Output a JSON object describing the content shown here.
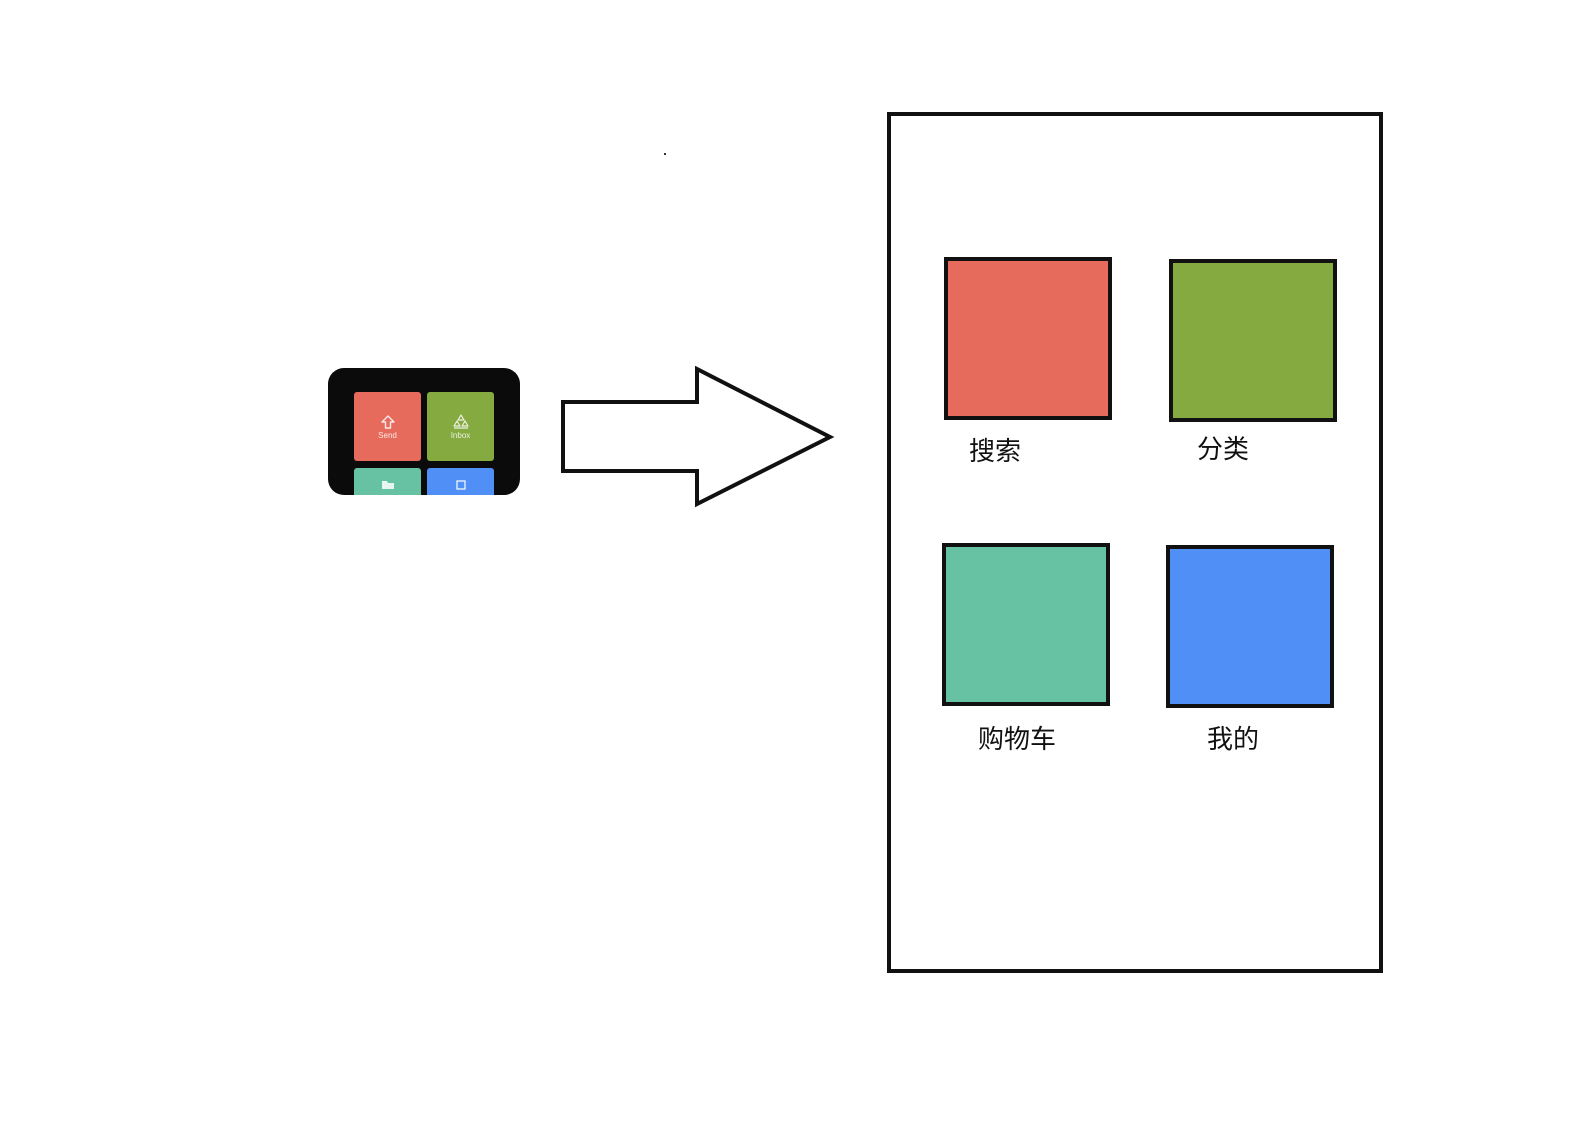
{
  "colors": {
    "red": "#e76b5d",
    "green": "#84aa40",
    "teal": "#67c2a4",
    "blue": "#508ff5",
    "outline": "#111111"
  },
  "thumbnail": {
    "tiles": [
      {
        "label": "Send",
        "icon": "upload-arrow-icon",
        "color": "#e76b5d"
      },
      {
        "label": "Inbox",
        "icon": "inbox-icon",
        "color": "#84aa40"
      },
      {
        "label": "",
        "icon": "folder-icon",
        "color": "#67c2a4"
      },
      {
        "label": "",
        "icon": "box-icon",
        "color": "#508ff5"
      }
    ]
  },
  "arrow": {
    "icon": "right-arrow-icon"
  },
  "phone": {
    "tiles": [
      {
        "label": "搜索",
        "color": "#e76b5d"
      },
      {
        "label": "分类",
        "color": "#84aa40"
      },
      {
        "label": "购物车",
        "color": "#67c2a4"
      },
      {
        "label": "我的",
        "color": "#508ff5"
      }
    ]
  }
}
